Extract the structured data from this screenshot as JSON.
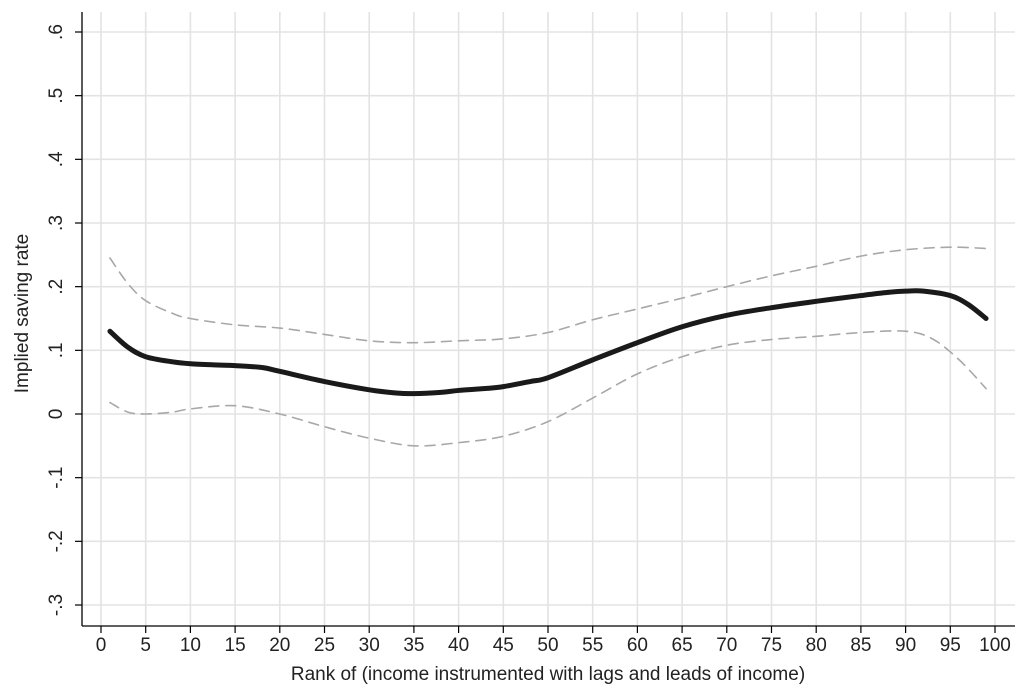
{
  "chart_data": {
    "type": "line",
    "title": "",
    "xlabel": "Rank of (income instrumented with lags and leads of income)",
    "ylabel": "Implied saving rate",
    "xlim": [
      0,
      100
    ],
    "ylim": [
      -0.3,
      0.6
    ],
    "x_ticks": [
      0,
      5,
      10,
      15,
      20,
      25,
      30,
      35,
      40,
      45,
      50,
      55,
      60,
      65,
      70,
      75,
      80,
      85,
      90,
      95,
      100
    ],
    "x_tick_labels": [
      "0",
      "5",
      "10",
      "15",
      "20",
      "25",
      "30",
      "35",
      "40",
      "45",
      "50",
      "55",
      "60",
      "65",
      "70",
      "75",
      "80",
      "85",
      "90",
      "95",
      "100"
    ],
    "y_ticks": [
      -0.3,
      -0.2,
      -0.1,
      0,
      0.1,
      0.2,
      0.3,
      0.4,
      0.5,
      0.6
    ],
    "y_tick_labels": [
      "-.3",
      "-.2",
      "-.1",
      "0",
      ".1",
      ".2",
      ".3",
      ".4",
      ".5",
      ".6"
    ],
    "grid": true,
    "legend": "none",
    "colors": {
      "estimate": "#1a1a1a",
      "ci": "#a8a8a8",
      "grid": "#e3e3e3",
      "axis": "#000000"
    },
    "series": [
      {
        "role": "estimate",
        "style": "solid-thick",
        "x": [
          1,
          3,
          5,
          8,
          10,
          13,
          15,
          18,
          20,
          25,
          30,
          33,
          35,
          38,
          40,
          43,
          45,
          48,
          50,
          55,
          60,
          65,
          70,
          75,
          80,
          85,
          88,
          90,
          92,
          95,
          97,
          99
        ],
        "y": [
          0.13,
          0.105,
          0.09,
          0.082,
          0.079,
          0.077,
          0.076,
          0.073,
          0.067,
          0.051,
          0.038,
          0.033,
          0.032,
          0.034,
          0.037,
          0.04,
          0.043,
          0.051,
          0.057,
          0.085,
          0.112,
          0.137,
          0.155,
          0.167,
          0.177,
          0.186,
          0.191,
          0.193,
          0.193,
          0.186,
          0.172,
          0.15
        ]
      },
      {
        "role": "ci-upper",
        "style": "dashed",
        "x": [
          1,
          3,
          5,
          8,
          10,
          15,
          20,
          25,
          30,
          35,
          40,
          45,
          50,
          55,
          60,
          65,
          70,
          75,
          80,
          85,
          90,
          95,
          99
        ],
        "y": [
          0.245,
          0.205,
          0.178,
          0.158,
          0.15,
          0.14,
          0.135,
          0.125,
          0.115,
          0.112,
          0.115,
          0.118,
          0.128,
          0.148,
          0.165,
          0.182,
          0.2,
          0.217,
          0.232,
          0.248,
          0.258,
          0.262,
          0.26
        ]
      },
      {
        "role": "ci-lower",
        "style": "dashed",
        "x": [
          1,
          3,
          5,
          8,
          10,
          15,
          20,
          25,
          30,
          35,
          40,
          45,
          50,
          55,
          60,
          65,
          70,
          75,
          80,
          85,
          90,
          93,
          96,
          99
        ],
        "y": [
          0.018,
          0.003,
          0.0,
          0.003,
          0.008,
          0.013,
          0.0,
          -0.02,
          -0.038,
          -0.05,
          -0.045,
          -0.035,
          -0.012,
          0.025,
          0.063,
          0.09,
          0.108,
          0.117,
          0.122,
          0.128,
          0.13,
          0.118,
          0.085,
          0.04
        ]
      }
    ]
  }
}
